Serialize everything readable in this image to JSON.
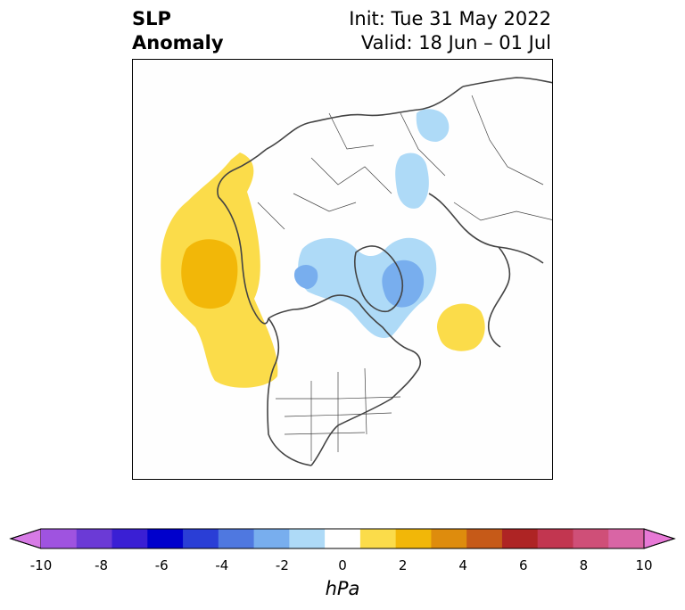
{
  "title": {
    "left_line1": "SLP",
    "left_line2": "Anomaly",
    "right_line1": "Init: Tue 31 May 2022",
    "right_line2": "Valid: 18 Jun – 01 Jul"
  },
  "colorbar": {
    "unit": "hPa",
    "ticks": [
      "-10",
      "-8",
      "-6",
      "-4",
      "-2",
      "0",
      "2",
      "4",
      "6",
      "8",
      "10"
    ],
    "colors": [
      "#d77be6",
      "#9f53e0",
      "#6b3ad6",
      "#3a1fd4",
      "#0000cc",
      "#2a3ed6",
      "#4f78e0",
      "#78aeee",
      "#aedaf7",
      "#ffffff",
      "#fbdc4a",
      "#f2b708",
      "#de8c0d",
      "#c65a18",
      "#ae2424",
      "#c23650",
      "#cf4f78",
      "#d965a5",
      "#e779d6"
    ]
  },
  "map": {
    "projection": "north-polar-stereographic",
    "colors": {
      "light_yellow": "#fbdc4a",
      "dark_yellow": "#f2b708",
      "light_blue": "#aedaf7",
      "mid_blue": "#78aeee",
      "coast": "#444444"
    }
  }
}
